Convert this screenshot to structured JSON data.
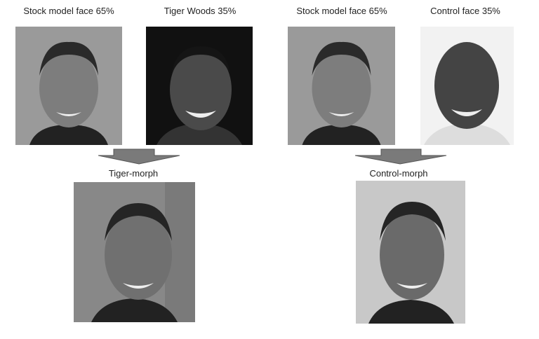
{
  "labels": {
    "stock1": "Stock model face 65%",
    "tiger": "Tiger Woods 35%",
    "stock2": "Stock model face 65%",
    "control": "Control face 35%",
    "tiger_morph": "Tiger-morph",
    "control_morph": "Control-morph"
  },
  "colors": {
    "arrow": "#7a7a7a"
  }
}
